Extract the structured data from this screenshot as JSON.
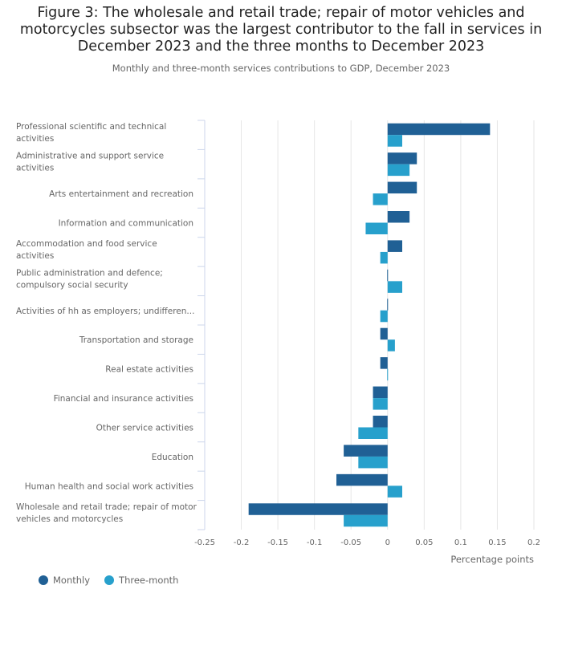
{
  "header": {
    "title": "Figure 3: The wholesale and retail trade; repair of motor vehicles and motorcycles subsector was the largest contributor to the fall in services in December 2023 and the three months to December 2023",
    "subtitle": "Monthly and three-month services contributions to GDP, December 2023"
  },
  "colors": {
    "monthly": "#206095",
    "three_month": "#27a0cc",
    "grid": "#e6e6e6",
    "axis": "#ccd6eb"
  },
  "legend": {
    "position": "bottom-left",
    "items": [
      {
        "name": "Monthly",
        "color": "#206095"
      },
      {
        "name": "Three-month",
        "color": "#27a0cc"
      }
    ]
  },
  "chart_data": {
    "type": "bar",
    "orientation": "horizontal",
    "title": "Figure 3: The wholesale and retail trade; repair of motor vehicles and motorcycles subsector was the largest contributor to the fall in services in December 2023 and the three months to December 2023",
    "subtitle": "Monthly and three-month services contributions to GDP, December 2023",
    "xlabel": "Percentage points",
    "ylabel": "",
    "xlim": [
      -0.25,
      0.2
    ],
    "xticks": [
      -0.25,
      -0.2,
      -0.15,
      -0.1,
      -0.05,
      0,
      0.05,
      0.1,
      0.15,
      0.2
    ],
    "xtick_labels": [
      "-0.25",
      "-0.2",
      "-0.15",
      "-0.1",
      "-0.05",
      "0",
      "0.05",
      "0.1",
      "0.15",
      "0.2"
    ],
    "grid": true,
    "legend_position": "bottom-left",
    "categories": [
      [
        "Professional scientific and technical",
        "activities"
      ],
      [
        "Administrative and support service",
        "activities"
      ],
      [
        "Arts entertainment and recreation"
      ],
      [
        "Information and communication"
      ],
      [
        "Accommodation and food service",
        "activities"
      ],
      [
        "Public administration and defence;",
        "compulsory social security"
      ],
      [
        "Activities of hh as employers; undifferen..."
      ],
      [
        "Transportation and storage"
      ],
      [
        "Real estate activities"
      ],
      [
        "Financial and insurance activities"
      ],
      [
        "Other service activities"
      ],
      [
        "Education"
      ],
      [
        "Human health and social work activities"
      ],
      [
        "Wholesale and retail trade; repair of motor",
        "vehicles and motorcycles"
      ]
    ],
    "series": [
      {
        "name": "Monthly",
        "color": "#206095",
        "values": [
          0.14,
          0.04,
          0.04,
          0.03,
          0.02,
          0.0,
          0.0,
          -0.01,
          -0.01,
          -0.02,
          -0.02,
          -0.06,
          -0.07,
          -0.19
        ]
      },
      {
        "name": "Three-month",
        "color": "#27a0cc",
        "values": [
          0.02,
          0.03,
          -0.02,
          -0.03,
          -0.01,
          0.02,
          -0.01,
          0.01,
          0.0,
          -0.02,
          -0.04,
          -0.04,
          0.02,
          -0.06
        ]
      }
    ]
  }
}
